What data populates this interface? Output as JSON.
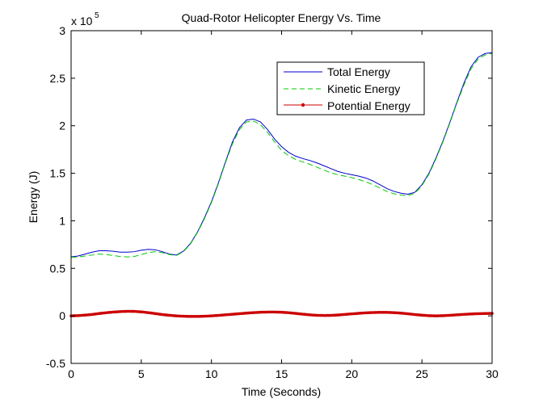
{
  "chart_data": {
    "type": "line",
    "title": "Quad-Rotor Helicopter Energy Vs. Time",
    "xlabel": "Time (Seconds)",
    "ylabel": "Energy (J)",
    "xlim": [
      0,
      30
    ],
    "ylim": [
      -0.5,
      3
    ],
    "y_multiplier_base": "x 10",
    "y_multiplier_exponent": "5",
    "x_ticks": [
      0,
      5,
      10,
      15,
      20,
      25,
      30
    ],
    "x_tick_labels": [
      "0",
      "5",
      "10",
      "15",
      "20",
      "25",
      "30"
    ],
    "y_ticks": [
      -0.5,
      0,
      0.5,
      1,
      1.5,
      2,
      2.5,
      3
    ],
    "y_tick_labels": [
      "-0.5",
      "0",
      "0.5",
      "1",
      "1.5",
      "2",
      "2.5",
      "3"
    ],
    "grid": false,
    "legend_position": "top-right",
    "series": [
      {
        "name": "Total Energy",
        "color": "#0000cc",
        "style": "solid",
        "x": [
          0,
          0.5,
          1,
          1.5,
          2,
          2.5,
          3,
          3.5,
          4,
          4.5,
          5,
          5.5,
          6,
          6.5,
          7,
          7.5,
          8,
          8.5,
          9,
          9.5,
          10,
          10.5,
          11,
          11.5,
          12,
          12.5,
          13,
          13.5,
          14,
          14.5,
          15,
          15.5,
          16,
          16.5,
          17,
          17.5,
          18,
          18.5,
          19,
          19.5,
          20,
          20.5,
          21,
          21.5,
          22,
          22.5,
          23,
          23.5,
          24,
          24.5,
          25,
          25.5,
          26,
          26.5,
          27,
          27.5,
          28,
          28.5,
          29,
          29.5,
          30
        ],
        "values": [
          0.62,
          0.63,
          0.65,
          0.67,
          0.685,
          0.685,
          0.68,
          0.67,
          0.67,
          0.675,
          0.69,
          0.7,
          0.695,
          0.675,
          0.65,
          0.64,
          0.68,
          0.76,
          0.88,
          1.03,
          1.2,
          1.4,
          1.62,
          1.83,
          1.98,
          2.06,
          2.07,
          2.04,
          1.96,
          1.86,
          1.78,
          1.72,
          1.68,
          1.655,
          1.635,
          1.61,
          1.58,
          1.55,
          1.52,
          1.5,
          1.485,
          1.47,
          1.45,
          1.42,
          1.38,
          1.34,
          1.31,
          1.29,
          1.28,
          1.3,
          1.38,
          1.5,
          1.66,
          1.84,
          2.04,
          2.25,
          2.45,
          2.62,
          2.72,
          2.76,
          2.77
        ]
      },
      {
        "name": "Kinetic Energy",
        "color": "#00cc00",
        "style": "dashed",
        "x": [
          0,
          0.5,
          1,
          1.5,
          2,
          2.5,
          3,
          3.5,
          4,
          4.5,
          5,
          5.5,
          6,
          6.5,
          7,
          7.5,
          8,
          8.5,
          9,
          9.5,
          10,
          10.5,
          11,
          11.5,
          12,
          12.5,
          13,
          13.5,
          14,
          14.5,
          15,
          15.5,
          16,
          16.5,
          17,
          17.5,
          18,
          18.5,
          19,
          19.5,
          20,
          20.5,
          21,
          21.5,
          22,
          22.5,
          23,
          23.5,
          24,
          24.5,
          25,
          25.5,
          26,
          26.5,
          27,
          27.5,
          28,
          28.5,
          29,
          29.5,
          30
        ],
        "values": [
          0.615,
          0.62,
          0.63,
          0.64,
          0.65,
          0.645,
          0.635,
          0.625,
          0.62,
          0.625,
          0.645,
          0.665,
          0.675,
          0.665,
          0.645,
          0.635,
          0.675,
          0.755,
          0.875,
          1.02,
          1.19,
          1.39,
          1.61,
          1.81,
          1.96,
          2.04,
          2.05,
          2.01,
          1.93,
          1.83,
          1.74,
          1.685,
          1.645,
          1.62,
          1.595,
          1.565,
          1.535,
          1.505,
          1.485,
          1.47,
          1.455,
          1.435,
          1.41,
          1.38,
          1.345,
          1.31,
          1.285,
          1.27,
          1.265,
          1.29,
          1.37,
          1.49,
          1.65,
          1.83,
          2.03,
          2.24,
          2.43,
          2.6,
          2.7,
          2.745,
          2.76
        ]
      },
      {
        "name": "Potential Energy",
        "color": "#cc0000",
        "style": "solid-dot-markers",
        "x": [
          0,
          0.5,
          1,
          1.5,
          2,
          2.5,
          3,
          3.5,
          4,
          4.5,
          5,
          5.5,
          6,
          6.5,
          7,
          7.5,
          8,
          8.5,
          9,
          9.5,
          10,
          10.5,
          11,
          11.5,
          12,
          12.5,
          13,
          13.5,
          14,
          14.5,
          15,
          15.5,
          16,
          16.5,
          17,
          17.5,
          18,
          18.5,
          19,
          19.5,
          20,
          20.5,
          21,
          21.5,
          22,
          22.5,
          23,
          23.5,
          24,
          24.5,
          25,
          25.5,
          26,
          26.5,
          27,
          27.5,
          28,
          28.5,
          29,
          29.5,
          30
        ],
        "values": [
          0.0,
          0.003,
          0.008,
          0.015,
          0.025,
          0.033,
          0.04,
          0.045,
          0.048,
          0.047,
          0.042,
          0.034,
          0.024,
          0.014,
          0.006,
          0.0,
          -0.004,
          -0.006,
          -0.006,
          -0.004,
          0.0,
          0.005,
          0.011,
          0.017,
          0.023,
          0.029,
          0.034,
          0.038,
          0.04,
          0.04,
          0.038,
          0.033,
          0.026,
          0.018,
          0.011,
          0.006,
          0.004,
          0.005,
          0.009,
          0.015,
          0.021,
          0.027,
          0.032,
          0.035,
          0.037,
          0.037,
          0.034,
          0.029,
          0.022,
          0.014,
          0.007,
          0.002,
          0.0,
          0.002,
          0.006,
          0.011,
          0.016,
          0.02,
          0.023,
          0.025,
          0.026
        ]
      }
    ]
  }
}
